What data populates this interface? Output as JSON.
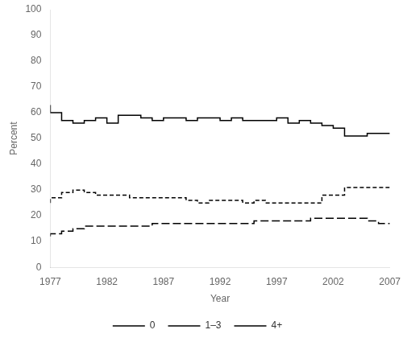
{
  "chart_data": {
    "type": "step",
    "x_label": "Year",
    "y_label": "Percent",
    "x": [
      1977,
      1978,
      1979,
      1980,
      1981,
      1982,
      1983,
      1984,
      1985,
      1986,
      1987,
      1988,
      1989,
      1990,
      1991,
      1992,
      1993,
      1994,
      1995,
      1996,
      1997,
      1998,
      1999,
      2000,
      2001,
      2002,
      2003,
      2004,
      2005,
      2006,
      2007
    ],
    "series": [
      {
        "name": "0",
        "color": "#000000",
        "line_style": "solid",
        "values": [
          63,
          60,
          57,
          56,
          57,
          58,
          56,
          59,
          59,
          58,
          57,
          58,
          58,
          57,
          58,
          58,
          57,
          58,
          57,
          57,
          57,
          58,
          56,
          57,
          56,
          55,
          54,
          51,
          51,
          52,
          52
        ]
      },
      {
        "name": "1–3",
        "color": "#000000",
        "line_style": "dashed",
        "values": [
          25,
          27,
          29,
          30,
          29,
          28,
          28,
          28,
          27,
          27,
          27,
          27,
          27,
          26,
          25,
          26,
          26,
          26,
          25,
          26,
          25,
          25,
          25,
          25,
          25,
          28,
          28,
          31,
          31,
          31,
          31
        ]
      },
      {
        "name": "4+",
        "color": "#000000",
        "line_style": "longdash",
        "values": [
          12,
          13,
          14,
          15,
          16,
          16,
          16,
          16,
          16,
          16,
          17,
          17,
          17,
          17,
          17,
          17,
          17,
          17,
          17,
          18,
          18,
          18,
          18,
          18,
          19,
          19,
          19,
          19,
          19,
          18,
          17
        ]
      }
    ],
    "xlim": [
      1977,
      2007
    ],
    "ylim": [
      0,
      100
    ],
    "xticks": [
      1977,
      1982,
      1987,
      1992,
      1997,
      2002,
      2007
    ],
    "yticks": [
      0,
      10,
      20,
      30,
      40,
      50,
      60,
      70,
      80,
      90,
      100
    ],
    "grid": false,
    "legend": "bottom"
  }
}
